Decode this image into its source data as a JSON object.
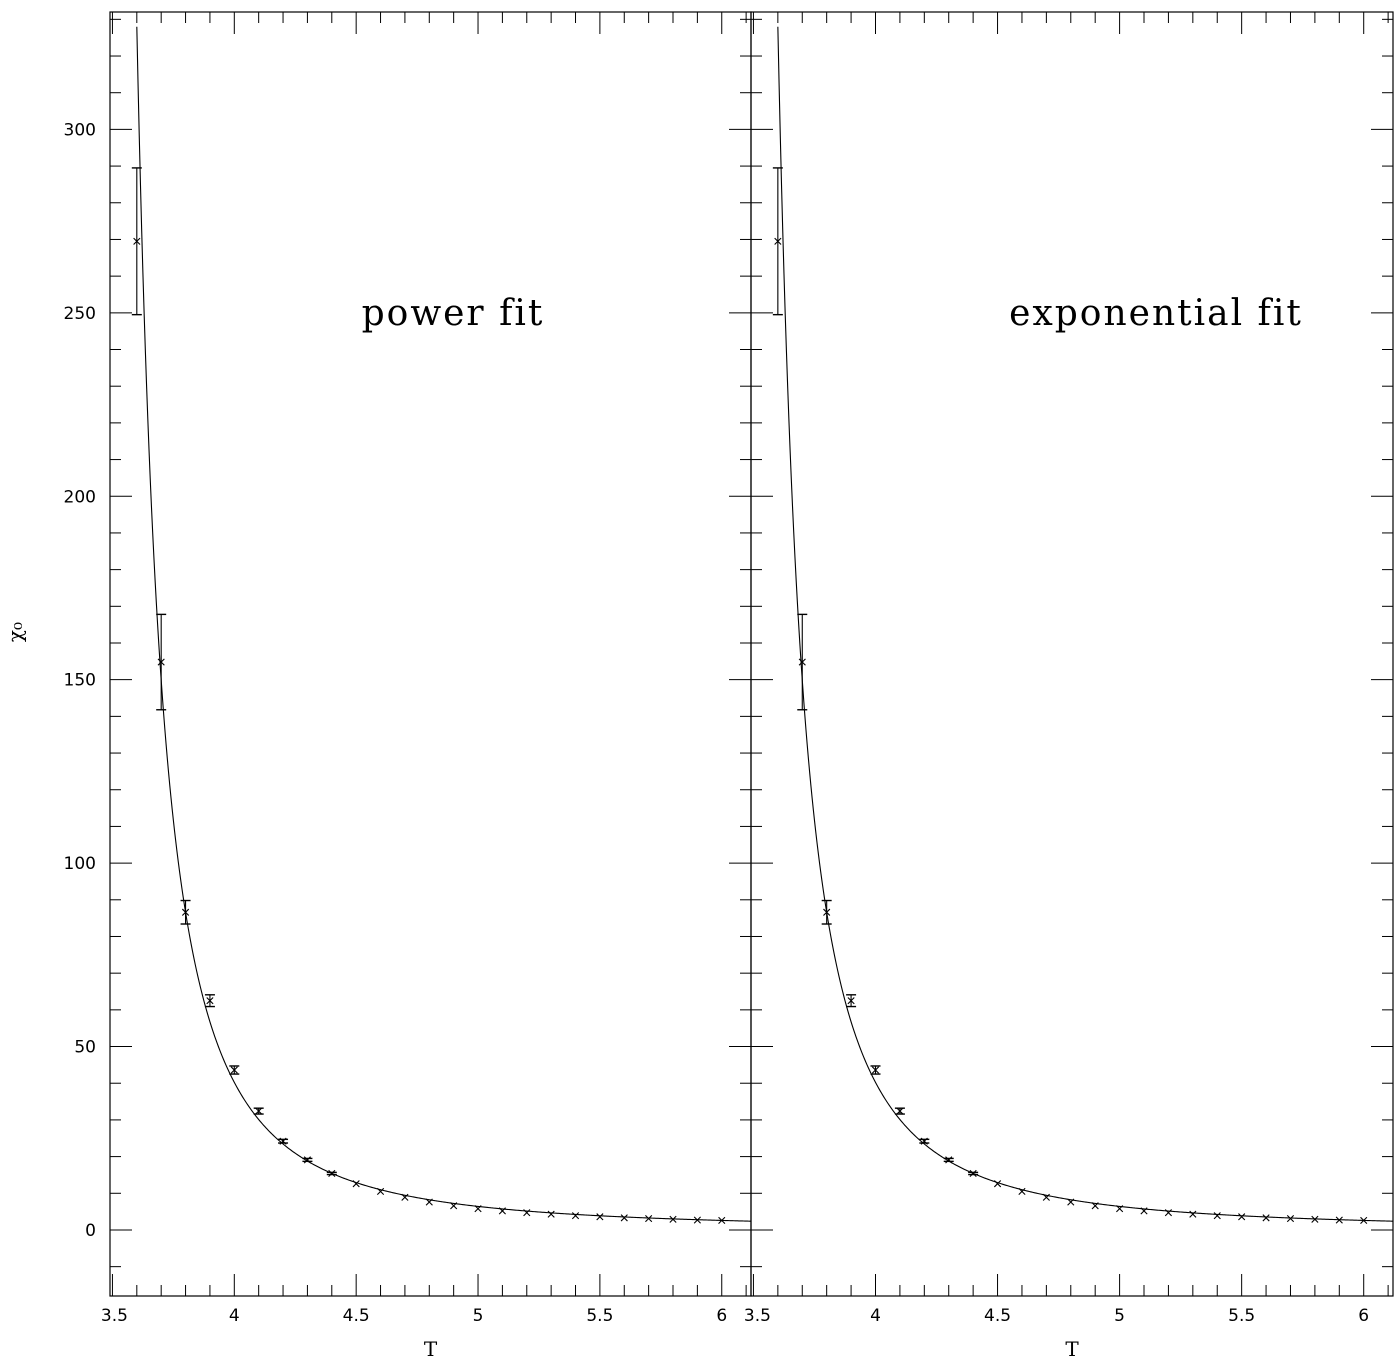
{
  "chart_data": [
    {
      "type": "scatter",
      "panel": "left",
      "annotation": "power fit",
      "xlabel": "T",
      "ylabel": "χ₀",
      "xlim": [
        3.49,
        6.12
      ],
      "ylim": [
        -18,
        332
      ],
      "x_ticks": [
        3.5,
        4,
        4.5,
        5,
        5.5,
        6
      ],
      "x_tick_labels": [
        "3.5",
        "4",
        "4.5",
        "5",
        "5.5",
        "6"
      ],
      "y_ticks": [
        0,
        50,
        100,
        150,
        200,
        250,
        300
      ],
      "y_tick_labels": [
        "0",
        "50",
        "100",
        "150",
        "200",
        "250",
        "300"
      ],
      "series": [
        {
          "marker": "x",
          "x": [
            3.6,
            3.7,
            3.8,
            3.9,
            4.0,
            4.1,
            4.2,
            4.3,
            4.4,
            4.5,
            4.6,
            4.7,
            4.8,
            4.9,
            5.0,
            5.1,
            5.2,
            5.3,
            5.4,
            5.5,
            5.6,
            5.7,
            5.8,
            5.9,
            6.0
          ],
          "y": [
            269.5,
            154.8,
            86.6,
            62.5,
            43.6,
            32.4,
            24.2,
            19.1,
            15.4,
            12.6,
            10.5,
            8.9,
            7.6,
            6.6,
            5.8,
            5.2,
            4.7,
            4.3,
            3.9,
            3.6,
            3.3,
            3.1,
            2.9,
            2.7,
            2.6
          ],
          "yerr": [
            20,
            13,
            3.2,
            1.6,
            1.1,
            0.8,
            0.5,
            0.4,
            0.3,
            0.25,
            0.2,
            0.2,
            0.15,
            0.1,
            0.1,
            0.1,
            0.1,
            0.1,
            0.1,
            0.1,
            0.1,
            0.1,
            0.1,
            0.1,
            0.1
          ]
        }
      ],
      "fit": {
        "type": "power"
      }
    },
    {
      "type": "scatter",
      "panel": "right",
      "annotation": "exponential fit",
      "xlabel": "T",
      "ylabel": "",
      "xlim": [
        3.49,
        6.12
      ],
      "ylim": [
        -18,
        332
      ],
      "x_ticks": [
        3.5,
        4,
        4.5,
        5,
        5.5,
        6
      ],
      "x_tick_labels": [
        "3.5",
        "4",
        "4.5",
        "5",
        "5.5",
        "6"
      ],
      "y_ticks": [
        0,
        50,
        100,
        150,
        200,
        250,
        300
      ],
      "y_tick_labels": [],
      "series": [
        {
          "marker": "x",
          "x": [
            3.6,
            3.7,
            3.8,
            3.9,
            4.0,
            4.1,
            4.2,
            4.3,
            4.4,
            4.5,
            4.6,
            4.7,
            4.8,
            4.9,
            5.0,
            5.1,
            5.2,
            5.3,
            5.4,
            5.5,
            5.6,
            5.7,
            5.8,
            5.9,
            6.0
          ],
          "y": [
            269.5,
            154.8,
            86.6,
            62.5,
            43.6,
            32.4,
            24.2,
            19.1,
            15.4,
            12.6,
            10.5,
            8.9,
            7.6,
            6.6,
            5.8,
            5.2,
            4.7,
            4.3,
            3.9,
            3.6,
            3.3,
            3.1,
            2.9,
            2.7,
            2.6
          ],
          "yerr": [
            20,
            13,
            3.2,
            1.6,
            1.1,
            0.8,
            0.5,
            0.4,
            0.3,
            0.25,
            0.2,
            0.2,
            0.15,
            0.1,
            0.1,
            0.1,
            0.1,
            0.1,
            0.1,
            0.1,
            0.1,
            0.1,
            0.1,
            0.1,
            0.1
          ]
        }
      ],
      "fit": {
        "type": "exponential"
      }
    }
  ]
}
